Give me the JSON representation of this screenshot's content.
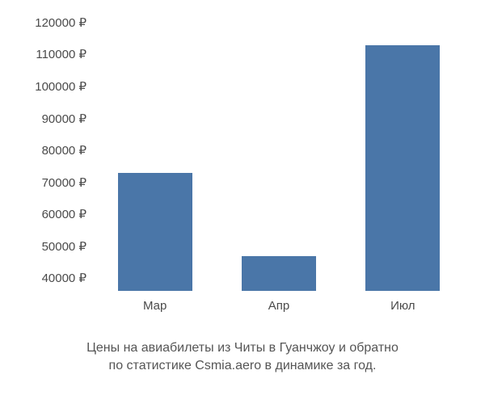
{
  "chart": {
    "type": "bar",
    "categories": [
      "Мар",
      "Апр",
      "Июл"
    ],
    "values": [
      73000,
      47000,
      113000
    ],
    "bar_color": "#4a76a8",
    "y_ticks": [
      40000,
      50000,
      60000,
      70000,
      80000,
      90000,
      100000,
      110000,
      120000
    ],
    "y_tick_labels": [
      "40000 ₽",
      "50000 ₽",
      "60000 ₽",
      "70000 ₽",
      "80000 ₽",
      "90000 ₽",
      "100000 ₽",
      "110000 ₽",
      "120000 ₽"
    ],
    "ylim": [
      36000,
      122000
    ],
    "background_color": "#ffffff",
    "bar_width_ratio": 0.6,
    "tick_fontsize": 15,
    "tick_color": "#4a4a4a",
    "caption_fontsize": 16,
    "caption_color": "#555555"
  },
  "caption": {
    "line1": "Цены на авиабилеты из Читы в Гуанчжоу и обратно",
    "line2": "по статистике Csmia.aero в динамике за год."
  }
}
